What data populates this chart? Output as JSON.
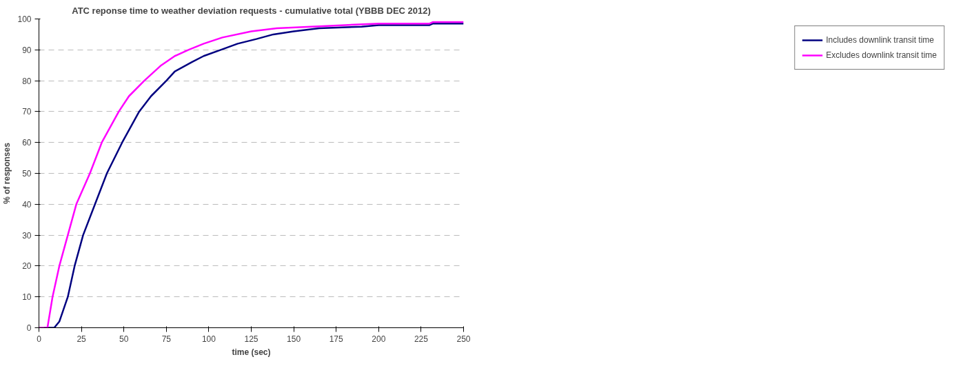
{
  "chart_data": {
    "type": "line",
    "title": "ATC reponse time to weather deviation requests - cumulative total (YBBB DEC 2012)",
    "xlabel": "time (sec)",
    "ylabel": "% of responses",
    "xlim": [
      0,
      250
    ],
    "ylim": [
      0,
      100
    ],
    "xticks": [
      0,
      25,
      50,
      75,
      100,
      125,
      150,
      175,
      200,
      225,
      250
    ],
    "yticks": [
      0,
      10,
      20,
      30,
      40,
      50,
      60,
      70,
      80,
      90,
      100
    ],
    "grid": "y",
    "legend": "right",
    "marker": "none",
    "line_style": "solid",
    "series": [
      {
        "name": "Includes downlink transit time",
        "color": "#000080",
        "x": [
          3,
          9,
          12,
          17,
          21,
          26,
          33,
          40,
          49,
          59,
          66,
          75,
          80,
          90,
          97,
          107,
          117,
          128,
          138,
          150,
          165,
          190,
          200,
          230,
          232,
          250
        ],
        "values": [
          0,
          0,
          2,
          10,
          20,
          30,
          40,
          50,
          60,
          70,
          75,
          80,
          83,
          86,
          88,
          90,
          92,
          93.5,
          95,
          96,
          97,
          97.5,
          98,
          98,
          98.5,
          98.5
        ]
      },
      {
        "name": "Excludes downlink transit time",
        "color": "#ff00ff",
        "x": [
          0,
          5,
          8,
          12,
          17,
          22,
          30,
          37,
          47,
          53,
          62,
          72,
          80,
          88,
          97,
          108,
          125,
          140,
          160,
          180,
          200,
          230,
          232,
          250
        ],
        "values": [
          0,
          0,
          10,
          20,
          30,
          40,
          50,
          60,
          70,
          75,
          80,
          85,
          88,
          90,
          92,
          94,
          96,
          97,
          97.5,
          98,
          98.5,
          98.5,
          99,
          99
        ]
      }
    ]
  }
}
